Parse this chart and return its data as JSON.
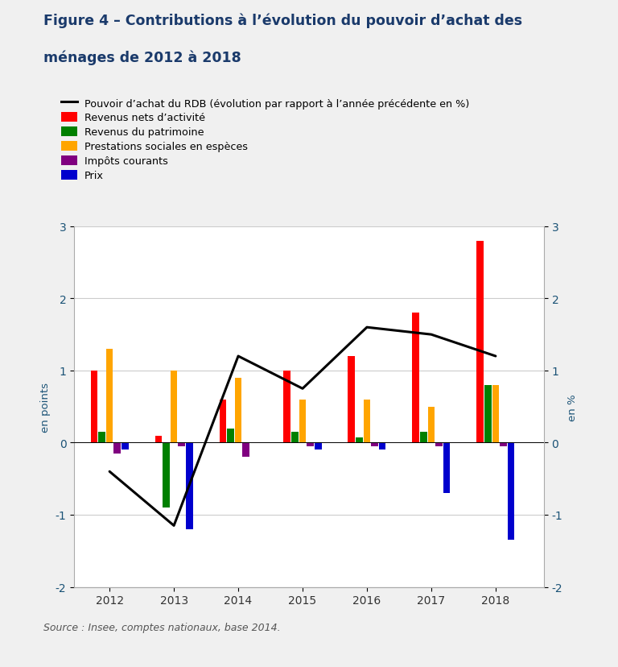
{
  "title_line1": "Figure 4 – Contributions à l’évolution du pouvoir d’achat des",
  "title_line2": "ménages de 2012 à 2018",
  "source": "Source : Insee, comptes nationaux, base 2014.",
  "years": [
    2012,
    2013,
    2014,
    2015,
    2016,
    2017,
    2018
  ],
  "bar_data": {
    "revenus_nets": [
      1.0,
      0.1,
      0.6,
      1.0,
      1.2,
      1.8,
      2.8
    ],
    "revenus_patrimoine": [
      0.15,
      -0.9,
      0.2,
      0.15,
      0.07,
      0.15,
      0.8
    ],
    "prestations_sociales": [
      1.3,
      1.0,
      0.9,
      0.6,
      0.6,
      0.5,
      0.8
    ],
    "impots_courants": [
      -0.15,
      -0.05,
      -0.2,
      -0.05,
      -0.05,
      -0.05,
      -0.05
    ],
    "prix": [
      -0.1,
      -1.2,
      0.0,
      -0.1,
      -0.1,
      -0.7,
      -1.35
    ]
  },
  "line_data": [
    -0.4,
    -1.15,
    1.2,
    0.75,
    1.6,
    1.5,
    1.2
  ],
  "colors": {
    "revenus_nets": "#FF0000",
    "revenus_patrimoine": "#008000",
    "prestations_sociales": "#FFA500",
    "impots_courants": "#800080",
    "prix": "#0000CD"
  },
  "ylim": [
    -2,
    3
  ],
  "yticks": [
    -2,
    -1,
    0,
    1,
    2,
    3
  ],
  "ylabel_left": "en points",
  "ylabel_right": "en %",
  "legend_items": [
    {
      "label": "Pouvoir d’achat du RDB (évolution par rapport à l’année précédente en %)",
      "color": "#000000",
      "type": "line"
    },
    {
      "label": "Revenus nets d’activité",
      "color": "#FF0000",
      "type": "patch"
    },
    {
      "label": "Revenus du patrimoine",
      "color": "#008000",
      "type": "patch"
    },
    {
      "label": "Prestations sociales en espèces",
      "color": "#FFA500",
      "type": "patch"
    },
    {
      "label": "Impôts courants",
      "color": "#800080",
      "type": "patch"
    },
    {
      "label": "Prix",
      "color": "#0000CD",
      "type": "patch"
    }
  ],
  "title_color": "#1a3a6b",
  "axis_label_color": "#1a5276",
  "tick_color": "#333333",
  "bar_width": 0.12,
  "grid_color": "#cccccc",
  "bg_outer": "#f0f0f0",
  "bg_inner": "#ffffff"
}
